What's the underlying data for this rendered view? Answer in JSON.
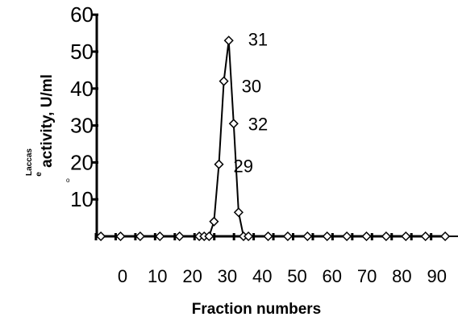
{
  "chart_data": {
    "type": "line",
    "xlabel": "Fraction numbers",
    "ylabel_main": "activity, U/ml",
    "ylabel_prefix": "Laccas",
    "ylabel_prefix_2": "e",
    "ylabel_mark": "o",
    "ylim": [
      0,
      60
    ],
    "y_ticks": [
      10,
      20,
      30,
      40,
      50,
      60
    ],
    "x_tick_labels": [
      "0",
      "10",
      "20",
      "30",
      "40",
      "50",
      "60",
      "70",
      "80",
      "90"
    ],
    "grid": false,
    "legend": "none",
    "series": [
      {
        "marker": "diamond",
        "x": [
          1,
          5,
          9,
          13,
          17,
          21,
          22,
          23,
          24,
          25,
          26,
          27,
          28,
          29,
          30,
          31,
          35,
          39,
          43,
          47,
          51,
          55,
          59,
          63,
          67,
          71,
          75,
          79
        ],
        "y": [
          0,
          0,
          0,
          0,
          0,
          0,
          0,
          0,
          4,
          19.5,
          42,
          53,
          30.5,
          6.5,
          0,
          0,
          0,
          0,
          0,
          0,
          0,
          0,
          0,
          0,
          0,
          0,
          0,
          0
        ]
      }
    ],
    "annotations": [
      {
        "label": "31",
        "x": 27,
        "y": 53
      },
      {
        "label": "30",
        "x": 26,
        "y": 42
      },
      {
        "label": "32",
        "x": 28,
        "y": 30.5
      },
      {
        "label": "29",
        "x": 25,
        "y": 19.5
      }
    ]
  }
}
